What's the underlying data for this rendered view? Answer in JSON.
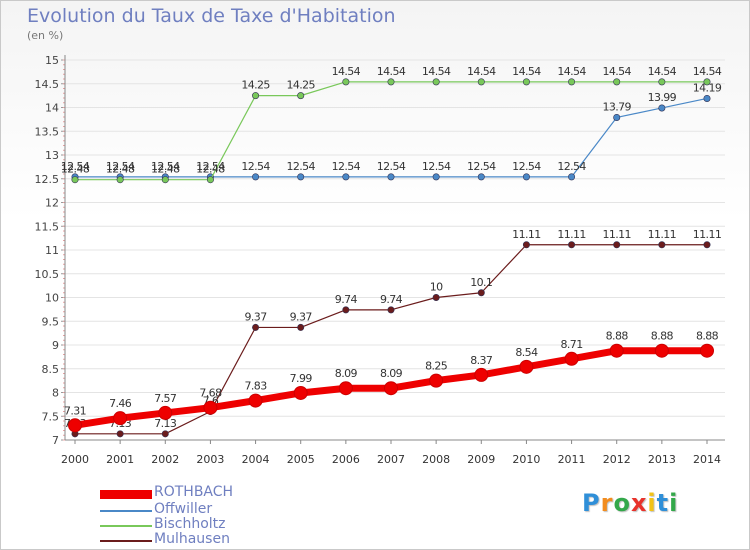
{
  "title": "Evolution du Taux de Taxe d'Habitation",
  "unit": "(en %)",
  "brand": {
    "name": "Proxiti",
    "letters": [
      "P",
      "r",
      "o",
      "x",
      "i",
      "t",
      "i"
    ],
    "colors": [
      "#2f8fd8",
      "#f28c1e",
      "#33a84a",
      "#e8322b",
      "#f2c318",
      "#2f8fd8",
      "#33a84a"
    ]
  },
  "chart_data": {
    "type": "line",
    "title": "Evolution du Taux de Taxe d'Habitation",
    "ylabel": "(en %)",
    "xlabel": "",
    "ylim": [
      7,
      15
    ],
    "y_ticks": [
      "7",
      "7.5",
      "8",
      "8.5",
      "9",
      "9.5",
      "10",
      "10.5",
      "11",
      "11.5",
      "12",
      "12.5",
      "13",
      "13.5",
      "14",
      "14.5",
      "15"
    ],
    "categories": [
      "2000",
      "2001",
      "2002",
      "2003",
      "2004",
      "2005",
      "2006",
      "2007",
      "2008",
      "2009",
      "2010",
      "2011",
      "2012",
      "2013",
      "2014"
    ],
    "legend_position": "bottom-left",
    "grid": true,
    "series": [
      {
        "name": "ROTHBACH",
        "color": "#ee0000",
        "values": [
          7.31,
          7.46,
          7.57,
          7.68,
          7.83,
          7.99,
          8.09,
          8.09,
          8.25,
          8.37,
          8.54,
          8.71,
          8.88,
          8.88,
          8.88
        ],
        "labels": [
          "7.31",
          "7.46",
          "7.57",
          "7.68",
          "7.83",
          "7.99",
          "8.09",
          "8.09",
          "8.25",
          "8.37",
          "8.54",
          "8.71",
          "8.88",
          "8.88",
          "8.88"
        ]
      },
      {
        "name": "Offwiller",
        "color": "#4a88c7",
        "values": [
          12.54,
          12.54,
          12.54,
          12.54,
          12.54,
          12.54,
          12.54,
          12.54,
          12.54,
          12.54,
          12.54,
          12.54,
          13.79,
          13.99,
          14.19
        ],
        "labels": [
          "12.54",
          "12.54",
          "12.54",
          "12.54",
          "12.54",
          "12.54",
          "12.54",
          "12.54",
          "12.54",
          "12.54",
          "12.54",
          "12.54",
          "13.79",
          "13.99",
          "14.19"
        ]
      },
      {
        "name": "Bischholtz",
        "color": "#79c85a",
        "values": [
          12.48,
          12.48,
          12.48,
          12.48,
          14.25,
          14.25,
          14.54,
          14.54,
          14.54,
          14.54,
          14.54,
          14.54,
          14.54,
          14.54,
          14.54
        ],
        "labels": [
          "12.48",
          "12.48",
          "12.48",
          "12.48",
          "14.25",
          "14.25",
          "14.54",
          "14.54",
          "14.54",
          "14.54",
          "14.54",
          "14.54",
          "14.54",
          "14.54",
          "14.54"
        ]
      },
      {
        "name": "Mulhausen",
        "color": "#6b1c1c",
        "values": [
          7.13,
          7.13,
          7.13,
          7.6,
          9.37,
          9.37,
          9.74,
          9.74,
          10,
          10.1,
          11.11,
          11.11,
          11.11,
          11.11,
          11.11
        ],
        "labels": [
          "7.13",
          "7.13",
          "7.13",
          "7.6",
          "9.37",
          "9.37",
          "9.74",
          "9.74",
          "10",
          "10.1",
          "11.11",
          "11.11",
          "11.11",
          "11.11",
          "11.11"
        ]
      }
    ]
  }
}
